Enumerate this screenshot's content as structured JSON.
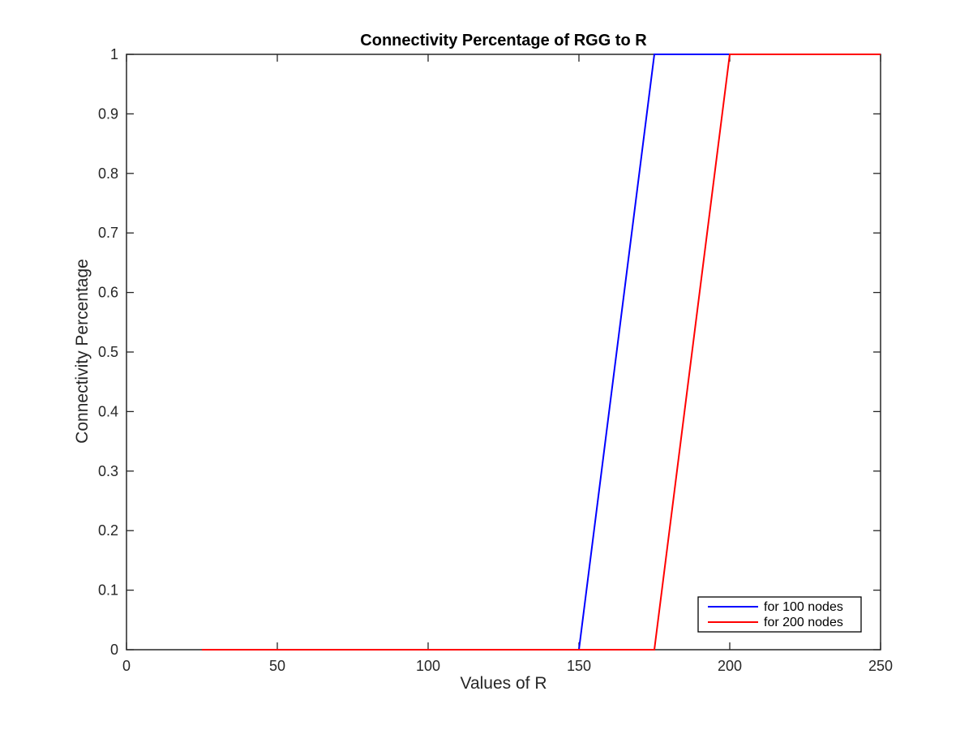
{
  "chart_data": {
    "type": "line",
    "title": "Connectivity Percentage of RGG to R",
    "xlabel": "Values of R",
    "ylabel": "Connectivity Percentage",
    "xlim": [
      0,
      250
    ],
    "ylim": [
      0,
      1
    ],
    "xticks": [
      0,
      50,
      100,
      150,
      200,
      250
    ],
    "yticks": [
      0,
      0.1,
      0.2,
      0.3,
      0.4,
      0.5,
      0.6,
      0.7,
      0.8,
      0.9,
      1
    ],
    "xtick_labels": [
      "0",
      "50",
      "100",
      "150",
      "200",
      "250"
    ],
    "ytick_labels": [
      "0",
      "0.1",
      "0.2",
      "0.3",
      "0.4",
      "0.5",
      "0.6",
      "0.7",
      "0.8",
      "0.9",
      "1"
    ],
    "grid": false,
    "legend_position": "bottom-right",
    "series": [
      {
        "name": "for 100 nodes",
        "color": "#0000ff",
        "x": [
          25,
          50,
          75,
          100,
          125,
          150,
          175,
          200,
          225,
          250
        ],
        "y": [
          0,
          0,
          0,
          0,
          0,
          0,
          1,
          1,
          1,
          1
        ]
      },
      {
        "name": "for 200 nodes",
        "color": "#ff0000",
        "x": [
          25,
          50,
          75,
          100,
          125,
          150,
          175,
          200,
          225,
          250
        ],
        "y": [
          0,
          0,
          0,
          0,
          0,
          0,
          0,
          1,
          1,
          1
        ]
      }
    ]
  }
}
